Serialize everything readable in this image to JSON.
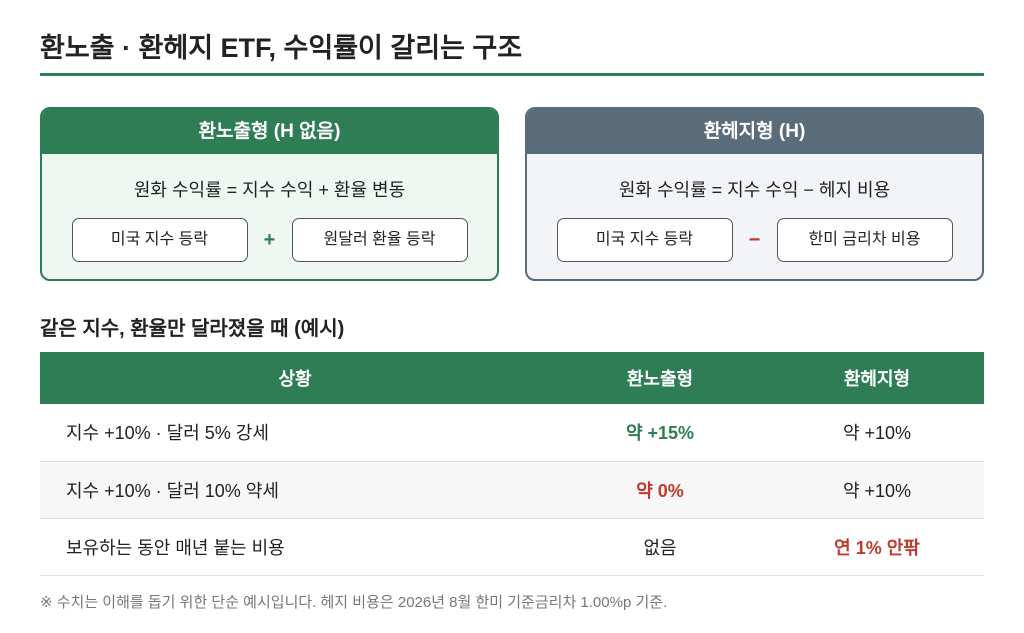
{
  "title": "환노출 · 환헤지 ETF, 수익률이 갈리는 구조",
  "cards": [
    {
      "title": "환노출형 (H 없음)",
      "formula": "원화 수익률 = 지수 수익 + 환율 변동",
      "boxes": [
        "미국 지수 등락",
        "원달러 환율 등락"
      ],
      "operator": "+"
    },
    {
      "title": "환헤지형 (H)",
      "formula": "원화 수익률 = 지수 수익 − 헤지 비용",
      "boxes": [
        "미국 지수 등락",
        "한미 금리차 비용"
      ],
      "operator": "−"
    }
  ],
  "table": {
    "title": "같은 지수, 환율만 달라졌을 때 (예시)",
    "header": [
      "상황",
      "환노출형",
      "환헤지형"
    ],
    "rows": [
      [
        "지수 +10% · 달러 5% 강세",
        "약 +15%",
        "약 +10%"
      ],
      [
        "지수 +10% · 달러 10% 약세",
        "약 0%",
        "약 +10%"
      ],
      [
        "보유하는 동안 매년 붙는 비용",
        "없음",
        "연 1% 안팎"
      ]
    ]
  },
  "note": "※ 수치는 이해를 돕기 위한 단순 예시입니다. 헤지 비용은 2026년 8월 한미 기준금리차 1.00%p 기준."
}
